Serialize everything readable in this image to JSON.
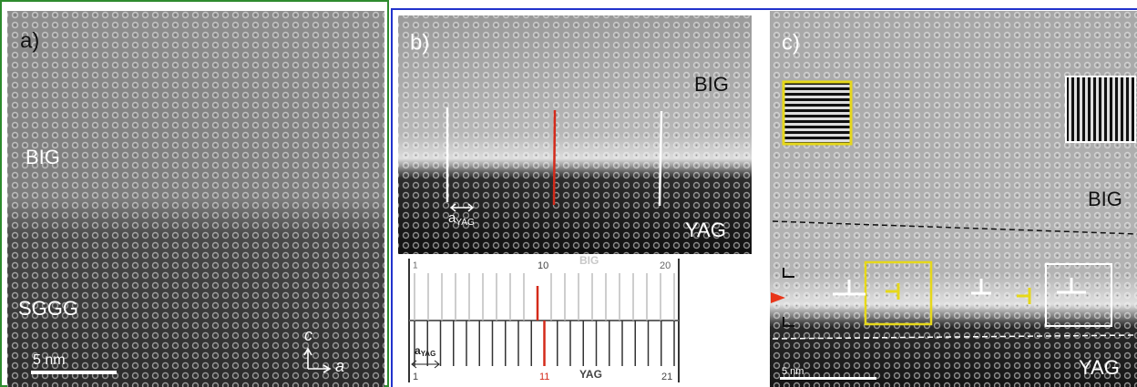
{
  "panels": [
    {
      "label": "a)",
      "regions": [
        "BIG",
        "SGGG"
      ],
      "scale_bar": "5 nm",
      "axes": [
        "c",
        "a"
      ]
    },
    {
      "label": "b)",
      "regions": [
        "BIG",
        "YAG"
      ],
      "lattice_label": {
        "main": "a",
        "sub": "YAG"
      },
      "ladder": {
        "top_material": "BIG",
        "bottom_material": "YAG",
        "top_ticks": [
          "1",
          "10",
          "20"
        ],
        "bottom_ticks": [
          "1",
          "11",
          "21"
        ],
        "spacing_label": {
          "main": "a",
          "sub": "YAG"
        }
      }
    },
    {
      "label": "c)",
      "regions": [
        "BIG",
        "YAG"
      ],
      "scale_bar": "5 nm"
    }
  ]
}
